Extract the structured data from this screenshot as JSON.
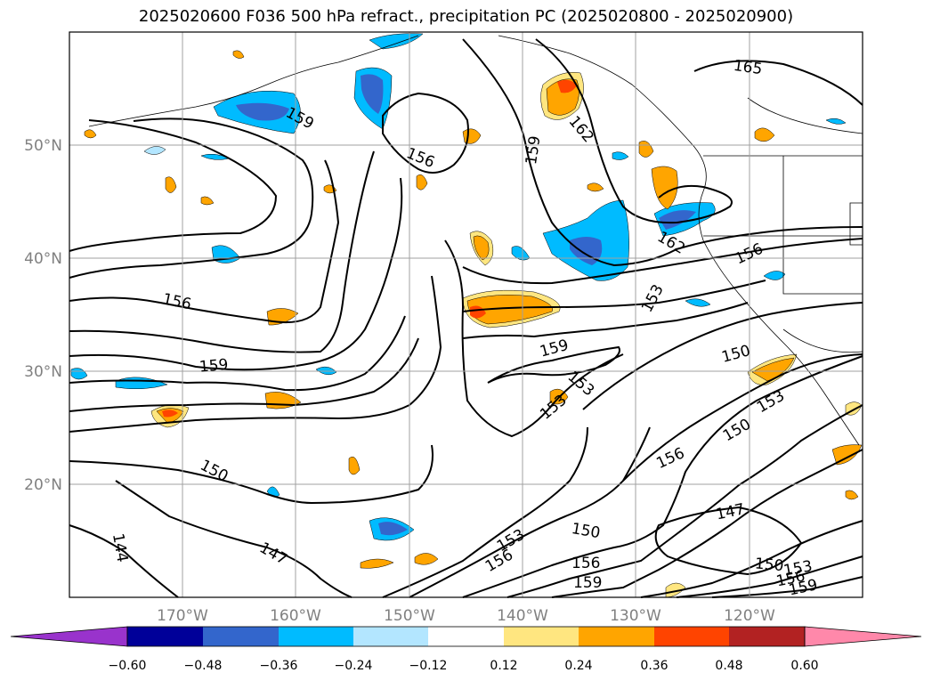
{
  "title": "2025020600 F036 500 hPa refract., precipitation PC (2025020800 - 2025020900)",
  "map": {
    "lat_labels": [
      "50°N",
      "40°N",
      "30°N",
      "20°N"
    ],
    "lon_labels": [
      "170°W",
      "160°W",
      "150°W",
      "140°W",
      "130°W",
      "120°W"
    ],
    "extent": {
      "lon": [
        -180,
        -110
      ],
      "lat": [
        10,
        60
      ]
    },
    "grid": true,
    "contour_labels": [
      "165",
      "162",
      "159",
      "156",
      "159",
      "162",
      "156",
      "153",
      "156",
      "159",
      "150",
      "153",
      "153",
      "153",
      "159",
      "150",
      "156",
      "153",
      "150",
      "156",
      "147",
      "150",
      "150",
      "153",
      "156",
      "156",
      "159",
      "159",
      "147",
      "144"
    ]
  },
  "colorbar": {
    "ticks": [
      "−0.60",
      "−0.48",
      "−0.36",
      "−0.24",
      "−0.12",
      "0.12",
      "0.24",
      "0.36",
      "0.48",
      "0.60"
    ],
    "colors": [
      "#9933cc",
      "#000099",
      "#3366cc",
      "#00bbff",
      "#b3e6ff",
      "#ffffff",
      "#ffe680",
      "#ffa500",
      "#ff4400",
      "#b22222",
      "#ff88aa"
    ],
    "extend": "both"
  }
}
